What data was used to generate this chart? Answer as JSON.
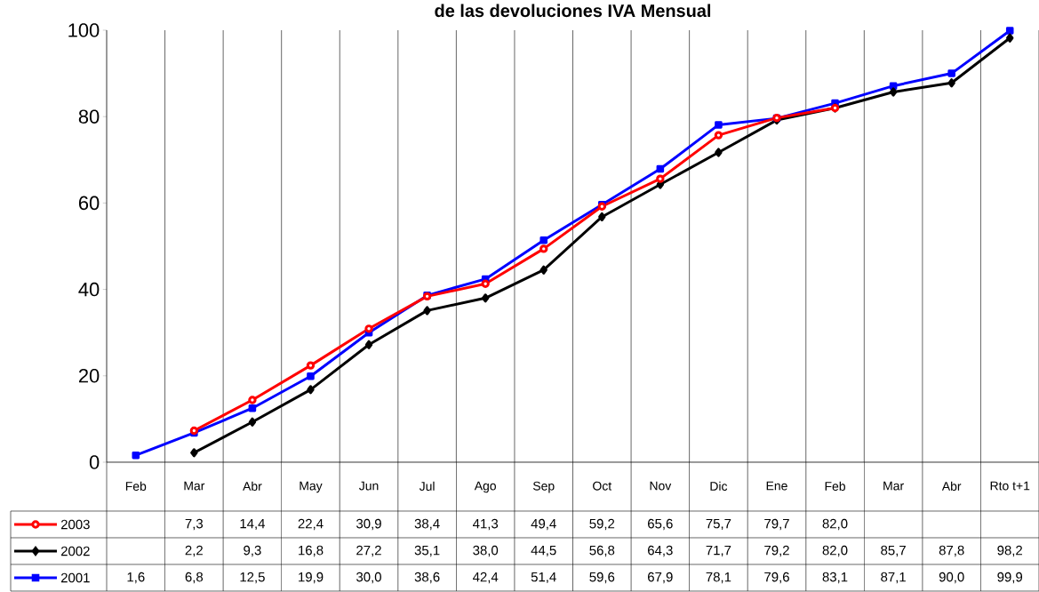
{
  "chart_data": {
    "type": "line",
    "title": "de las devoluciones IVA Mensual",
    "categories": [
      "Feb",
      "Mar",
      "Abr",
      "May",
      "Jun",
      "Jul",
      "Ago",
      "Sep",
      "Oct",
      "Nov",
      "Dic",
      "Ene",
      "Feb",
      "Mar",
      "Abr",
      "Rto t+1"
    ],
    "series": [
      {
        "name": "2003",
        "color": "#ff0000",
        "marker": "circle",
        "values": [
          null,
          7.3,
          14.4,
          22.4,
          30.9,
          38.4,
          41.3,
          49.4,
          59.2,
          65.6,
          75.7,
          79.7,
          82.0,
          null,
          null,
          null
        ],
        "value_labels": [
          null,
          "7,3",
          "14,4",
          "22,4",
          "30,9",
          "38,4",
          "41,3",
          "49,4",
          "59,2",
          "65,6",
          "75,7",
          "79,7",
          "82,0",
          null,
          null,
          null
        ]
      },
      {
        "name": "2002",
        "color": "#000000",
        "marker": "diamond",
        "values": [
          null,
          2.2,
          9.3,
          16.8,
          27.2,
          35.1,
          38.0,
          44.5,
          56.8,
          64.3,
          71.7,
          79.2,
          82.0,
          85.7,
          87.8,
          98.2
        ],
        "value_labels": [
          null,
          "2,2",
          "9,3",
          "16,8",
          "27,2",
          "35,1",
          "38,0",
          "44,5",
          "56,8",
          "64,3",
          "71,7",
          "79,2",
          "82,0",
          "85,7",
          "87,8",
          "98,2"
        ]
      },
      {
        "name": "2001",
        "color": "#0000ff",
        "marker": "square",
        "values": [
          1.6,
          6.8,
          12.5,
          19.9,
          30.0,
          38.6,
          42.4,
          51.4,
          59.6,
          67.9,
          78.1,
          79.6,
          83.1,
          87.1,
          90.0,
          99.9
        ],
        "value_labels": [
          "1,6",
          "6,8",
          "12,5",
          "19,9",
          "30,0",
          "38,6",
          "42,4",
          "51,4",
          "59,6",
          "67,9",
          "78,1",
          "79,6",
          "83,1",
          "87,1",
          "90,0",
          "99,9"
        ]
      }
    ],
    "ylim": [
      0,
      100
    ],
    "yticks": [
      0,
      20,
      40,
      60,
      80,
      100
    ],
    "grid": "x",
    "legend": "bottom",
    "line_style": "solid"
  }
}
